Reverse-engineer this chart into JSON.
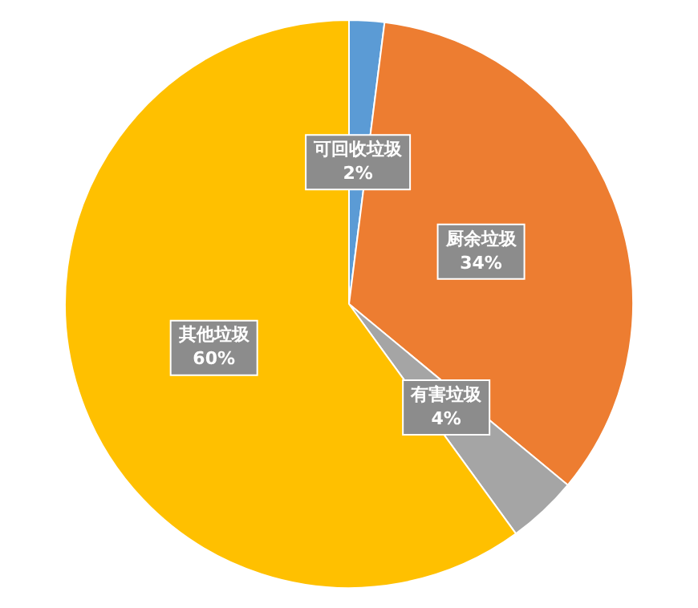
{
  "chart_data": {
    "type": "pie",
    "categories": [
      "可回收垃圾",
      "厨余垃圾",
      "有害垃圾",
      "其他垃圾"
    ],
    "values": [
      2,
      34,
      4,
      60
    ],
    "colors": [
      "#5b9bd5",
      "#ed7d31",
      "#a5a5a5",
      "#ffc000"
    ],
    "value_labels": [
      "2%",
      "34%",
      "4%",
      "60%"
    ],
    "legend": false
  }
}
